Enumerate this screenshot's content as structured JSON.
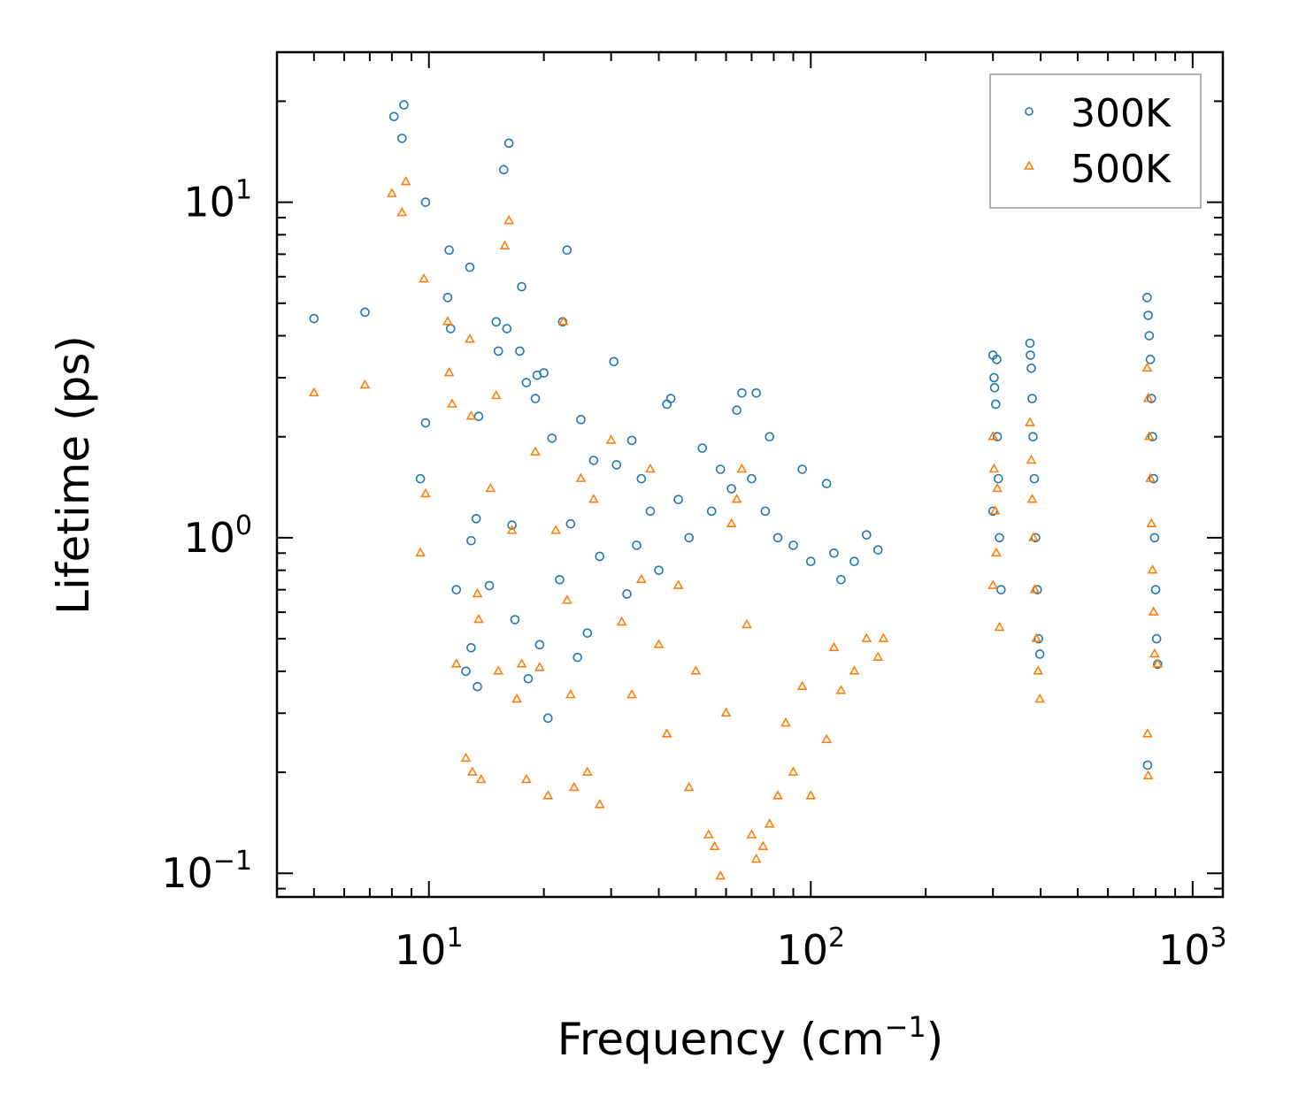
{
  "chart_data": {
    "type": "scatter",
    "xlabel": "Frequency (cm",
    "xlabel_sup": "−1",
    "xlabel_end": ")",
    "ylabel": "Lifetime (ps)",
    "xscale": "log",
    "yscale": "log",
    "xlim": [
      4.0,
      1200
    ],
    "ylim": [
      0.085,
      28
    ],
    "x_major_ticks": [
      {
        "value": 10,
        "base": "10",
        "exp": "1"
      },
      {
        "value": 100,
        "base": "10",
        "exp": "2"
      },
      {
        "value": 1000,
        "base": "10",
        "exp": "3"
      }
    ],
    "y_major_ticks": [
      {
        "value": 0.1,
        "base": "10",
        "exp": "−1"
      },
      {
        "value": 1,
        "base": "10",
        "exp": "0"
      },
      {
        "value": 10,
        "base": "10",
        "exp": "1"
      }
    ],
    "legend_position": "top-right",
    "series": [
      {
        "name": "300K",
        "marker": "circle",
        "color": "#1f77b4",
        "points": [
          [
            5.0,
            4.5
          ],
          [
            6.8,
            4.7
          ],
          [
            8.1,
            18.0
          ],
          [
            8.5,
            15.5
          ],
          [
            8.6,
            19.5
          ],
          [
            9.8,
            10.0
          ],
          [
            9.5,
            1.5
          ],
          [
            9.8,
            2.2
          ],
          [
            11.3,
            7.2
          ],
          [
            11.2,
            5.2
          ],
          [
            11.4,
            4.2
          ],
          [
            11.8,
            0.7
          ],
          [
            12.8,
            6.4
          ],
          [
            12.9,
            0.98
          ],
          [
            13.3,
            1.14
          ],
          [
            13.5,
            2.3
          ],
          [
            12.5,
            0.4
          ],
          [
            12.9,
            0.47
          ],
          [
            13.4,
            0.36
          ],
          [
            14.4,
            0.72
          ],
          [
            15.0,
            4.4
          ],
          [
            15.2,
            3.6
          ],
          [
            15.7,
            12.5
          ],
          [
            16.0,
            4.2
          ],
          [
            16.2,
            15.0
          ],
          [
            16.5,
            1.09
          ],
          [
            16.8,
            0.57
          ],
          [
            17.3,
            3.6
          ],
          [
            17.5,
            5.6
          ],
          [
            18.0,
            2.9
          ],
          [
            18.2,
            0.38
          ],
          [
            19.0,
            2.6
          ],
          [
            19.2,
            3.05
          ],
          [
            19.5,
            0.48
          ],
          [
            20.0,
            3.1
          ],
          [
            20.5,
            0.29
          ],
          [
            21.0,
            1.98
          ],
          [
            22.0,
            0.75
          ],
          [
            22.4,
            4.4
          ],
          [
            23.0,
            7.2
          ],
          [
            23.5,
            1.1
          ],
          [
            24.5,
            0.44
          ],
          [
            25.0,
            2.25
          ],
          [
            26.0,
            0.52
          ],
          [
            27.0,
            1.7
          ],
          [
            28.0,
            0.88
          ],
          [
            30.5,
            3.35
          ],
          [
            31.0,
            1.65
          ],
          [
            33.0,
            0.68
          ],
          [
            34.0,
            1.95
          ],
          [
            35.0,
            0.95
          ],
          [
            36.0,
            1.5
          ],
          [
            38.0,
            1.2
          ],
          [
            40.0,
            0.8
          ],
          [
            42.0,
            2.5
          ],
          [
            43.0,
            2.6
          ],
          [
            45.0,
            1.3
          ],
          [
            48.0,
            1.0
          ],
          [
            52.0,
            1.85
          ],
          [
            55.0,
            1.2
          ],
          [
            58.0,
            1.6
          ],
          [
            62.0,
            1.4
          ],
          [
            64.0,
            2.4
          ],
          [
            66.0,
            2.7
          ],
          [
            70.0,
            1.5
          ],
          [
            72.0,
            2.7
          ],
          [
            76.0,
            1.2
          ],
          [
            78.0,
            2.0
          ],
          [
            82.0,
            1.0
          ],
          [
            90.0,
            0.95
          ],
          [
            95.0,
            1.6
          ],
          [
            100.0,
            0.85
          ],
          [
            110.0,
            1.45
          ],
          [
            115.0,
            0.9
          ],
          [
            120.0,
            0.75
          ],
          [
            130.0,
            0.85
          ],
          [
            140.0,
            1.02
          ],
          [
            150.0,
            0.92
          ],
          [
            300.0,
            3.5
          ],
          [
            302.0,
            3.0
          ],
          [
            305.0,
            2.5
          ],
          [
            308.0,
            2.0
          ],
          [
            310.0,
            1.5
          ],
          [
            312.0,
            1.0
          ],
          [
            315.0,
            0.7
          ],
          [
            300.0,
            1.2
          ],
          [
            303.0,
            2.8
          ],
          [
            307.0,
            3.4
          ],
          [
            375.0,
            3.8
          ],
          [
            378.0,
            3.2
          ],
          [
            380.0,
            2.6
          ],
          [
            382.0,
            2.0
          ],
          [
            385.0,
            1.5
          ],
          [
            388.0,
            1.0
          ],
          [
            392.0,
            0.7
          ],
          [
            395.0,
            0.5
          ],
          [
            398.0,
            0.45
          ],
          [
            376.0,
            3.5
          ],
          [
            760.0,
            5.2
          ],
          [
            765.0,
            4.6
          ],
          [
            770.0,
            4.0
          ],
          [
            775.0,
            3.4
          ],
          [
            780.0,
            2.6
          ],
          [
            785.0,
            2.0
          ],
          [
            790.0,
            1.5
          ],
          [
            795.0,
            1.0
          ],
          [
            800.0,
            0.7
          ],
          [
            805.0,
            0.5
          ],
          [
            762.0,
            0.21
          ],
          [
            810.0,
            0.42
          ]
        ]
      },
      {
        "name": "500K",
        "marker": "triangle",
        "color": "#ff7f0e",
        "points": [
          [
            5.0,
            2.7
          ],
          [
            6.8,
            2.85
          ],
          [
            8.0,
            10.6
          ],
          [
            8.5,
            9.3
          ],
          [
            8.7,
            11.5
          ],
          [
            9.5,
            0.9
          ],
          [
            9.8,
            1.35
          ],
          [
            9.7,
            5.9
          ],
          [
            11.2,
            4.4
          ],
          [
            11.3,
            3.1
          ],
          [
            11.5,
            2.5
          ],
          [
            11.8,
            0.42
          ],
          [
            12.8,
            3.9
          ],
          [
            12.9,
            2.3
          ],
          [
            13.4,
            0.68
          ],
          [
            13.5,
            0.57
          ],
          [
            12.5,
            0.22
          ],
          [
            13.0,
            0.2
          ],
          [
            13.7,
            0.19
          ],
          [
            14.5,
            1.4
          ],
          [
            15.0,
            2.65
          ],
          [
            15.2,
            0.4
          ],
          [
            15.8,
            7.4
          ],
          [
            16.2,
            8.8
          ],
          [
            16.5,
            1.05
          ],
          [
            17.0,
            0.33
          ],
          [
            17.5,
            0.42
          ],
          [
            18.0,
            0.19
          ],
          [
            19.0,
            1.8
          ],
          [
            19.5,
            0.41
          ],
          [
            20.5,
            0.17
          ],
          [
            21.5,
            1.05
          ],
          [
            22.5,
            4.4
          ],
          [
            23.0,
            0.65
          ],
          [
            23.5,
            0.34
          ],
          [
            24.0,
            0.18
          ],
          [
            25.0,
            1.5
          ],
          [
            26.0,
            0.2
          ],
          [
            27.0,
            1.3
          ],
          [
            28.0,
            0.16
          ],
          [
            30.0,
            1.95
          ],
          [
            32.0,
            0.56
          ],
          [
            34.0,
            0.34
          ],
          [
            36.0,
            0.75
          ],
          [
            38.0,
            1.6
          ],
          [
            40.0,
            0.48
          ],
          [
            42.0,
            0.26
          ],
          [
            45.0,
            0.72
          ],
          [
            48.0,
            0.18
          ],
          [
            50.0,
            0.4
          ],
          [
            54.0,
            0.13
          ],
          [
            56.0,
            0.12
          ],
          [
            58.0,
            0.098
          ],
          [
            60.0,
            0.3
          ],
          [
            62.0,
            1.1
          ],
          [
            64.0,
            1.3
          ],
          [
            66.0,
            1.6
          ],
          [
            68.0,
            0.55
          ],
          [
            70.0,
            0.13
          ],
          [
            72.0,
            0.11
          ],
          [
            75.0,
            0.12
          ],
          [
            78.0,
            0.14
          ],
          [
            82.0,
            0.17
          ],
          [
            86.0,
            0.28
          ],
          [
            90.0,
            0.2
          ],
          [
            95.0,
            0.36
          ],
          [
            100.0,
            0.17
          ],
          [
            110.0,
            0.25
          ],
          [
            115.0,
            0.47
          ],
          [
            120.0,
            0.35
          ],
          [
            130.0,
            0.4
          ],
          [
            140.0,
            0.5
          ],
          [
            150.0,
            0.44
          ],
          [
            155.0,
            0.5
          ],
          [
            300.0,
            2.0
          ],
          [
            302.0,
            1.6
          ],
          [
            304.0,
            1.2
          ],
          [
            306.0,
            0.9
          ],
          [
            300.0,
            0.72
          ],
          [
            308.0,
            1.4
          ],
          [
            312.0,
            0.54
          ],
          [
            375.0,
            2.2
          ],
          [
            378.0,
            1.7
          ],
          [
            380.0,
            1.3
          ],
          [
            383.0,
            1.0
          ],
          [
            386.0,
            0.7
          ],
          [
            390.0,
            0.5
          ],
          [
            394.0,
            0.4
          ],
          [
            398.0,
            0.33
          ],
          [
            760.0,
            3.2
          ],
          [
            765.0,
            2.6
          ],
          [
            770.0,
            2.0
          ],
          [
            775.0,
            1.5
          ],
          [
            780.0,
            1.1
          ],
          [
            785.0,
            0.8
          ],
          [
            790.0,
            0.6
          ],
          [
            795.0,
            0.45
          ],
          [
            762.0,
            0.26
          ],
          [
            765.0,
            0.195
          ],
          [
            810.0,
            0.42
          ]
        ]
      }
    ]
  }
}
